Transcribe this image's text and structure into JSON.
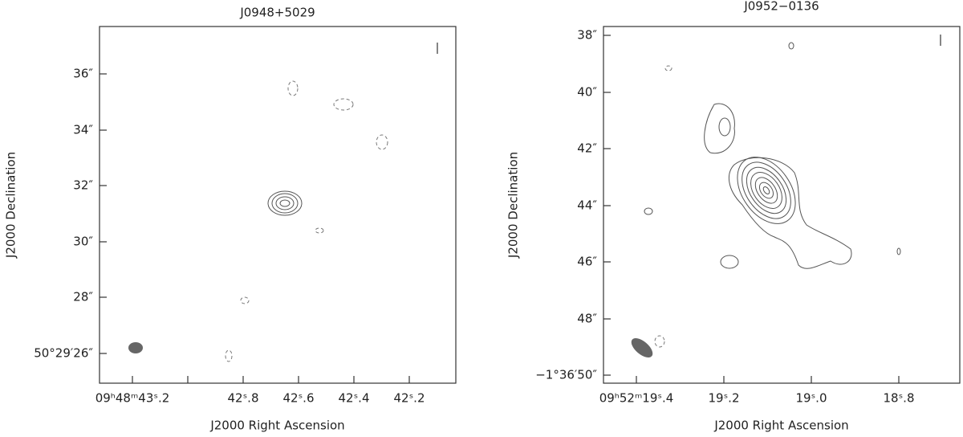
{
  "panels": [
    {
      "title": "J0948+5029",
      "x_label": "J2000 Right Ascension",
      "y_label": "J2000 Declination",
      "x_ticks": [
        "09ʰ48ᵐ43ˢ.2",
        "42ˢ.8",
        "42ˢ.6",
        "42ˢ.4",
        "42ˢ.2"
      ],
      "y_ticks": [
        "36″",
        "34″",
        "32″",
        "30″",
        "28″",
        "50°29′26″"
      ]
    },
    {
      "title": "J0952−0136",
      "x_label": "J2000 Right Ascension",
      "y_label": "J2000 Declination",
      "x_ticks": [
        "09ʰ52ᵐ19ˢ.4",
        "19ˢ.2",
        "19ˢ.0",
        "18ˢ.8"
      ],
      "y_ticks": [
        "38″",
        "40″",
        "42″",
        "44″",
        "46″",
        "48″",
        "−1°36′50″"
      ]
    }
  ]
}
